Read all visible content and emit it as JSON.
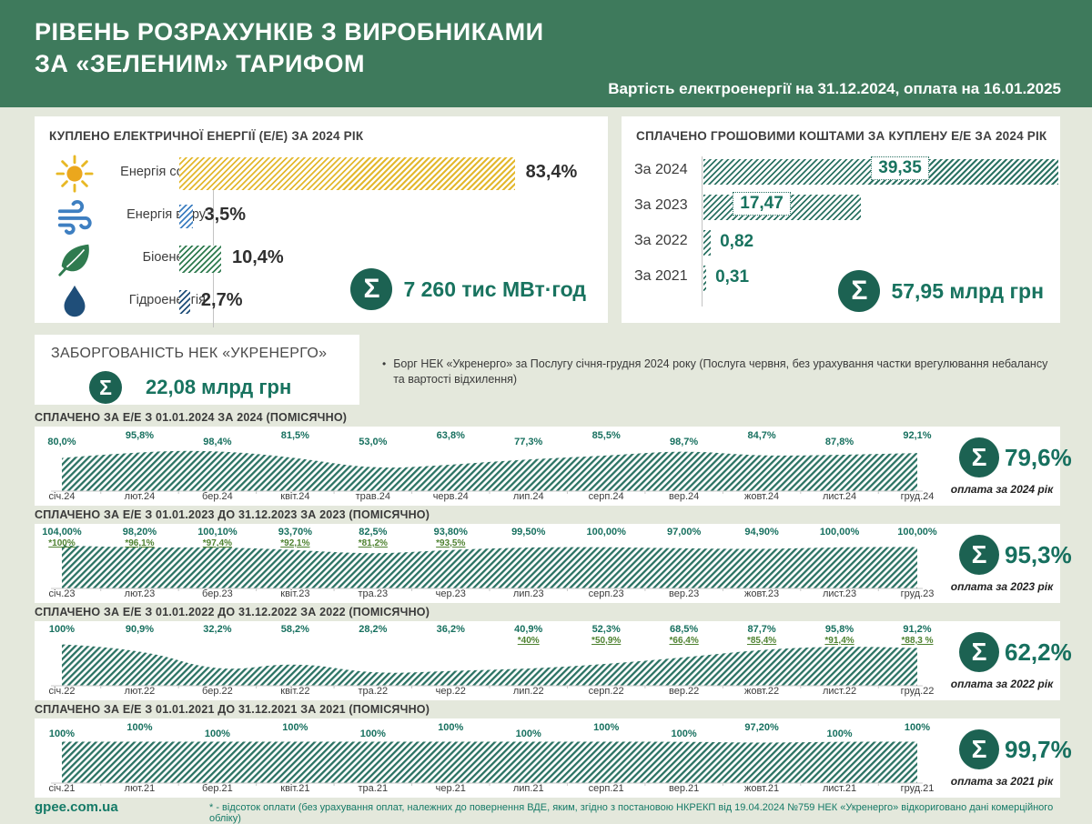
{
  "header": {
    "title_line1": "РІВЕНЬ РОЗРАХУНКІВ З ВИРОБНИКАМИ",
    "title_line2": "ЗА «ЗЕЛЕНИМ» ТАРИФОМ",
    "subtitle": "Вартість електроенергії на 31.12.2024, оплата на 16.01.2025"
  },
  "purchased": {
    "title": "КУПЛЕНО ЕЛЕКТРИЧНОЇ ЕНЕРГІЇ (Е/Е) ЗА 2024 РІК",
    "rows": [
      {
        "icon": "sun-icon",
        "label": "Енергія сонця",
        "value": "83,4%",
        "pct": 83.4,
        "color": "#E3B82E"
      },
      {
        "icon": "wind-icon",
        "label": "Енергія вітру",
        "value": "3,5%",
        "pct": 3.5,
        "color": "#3E7FC1"
      },
      {
        "icon": "leaf-icon",
        "label": "Біоенергія",
        "value": "10,4%",
        "pct": 10.4,
        "color": "#2F7B4F"
      },
      {
        "icon": "drop-icon",
        "label": "Гідроенергія",
        "value": "2,7%",
        "pct": 2.7,
        "color": "#1F4E79"
      }
    ],
    "total_label": "7 260 тис МВт·год"
  },
  "paid": {
    "title": "СПЛАЧЕНО ГРОШОВИМИ КОШТАМИ ЗА КУПЛЕНУ Е/Е ЗА 2024 РІК",
    "rows": [
      {
        "label": "За 2024",
        "value": "39,35",
        "amount": 39.35,
        "box": "inside",
        "box_left": 0.55
      },
      {
        "label": "За 2023",
        "value": "17,47",
        "amount": 17.47,
        "box": "inside",
        "box_left": 0.36
      },
      {
        "label": "За 2022",
        "value": "0,82",
        "amount": 0.82,
        "box": "outside"
      },
      {
        "label": "За 2021",
        "value": "0,31",
        "amount": 0.31,
        "box": "outside"
      }
    ],
    "total_label": "57,95 млрд грн"
  },
  "debt": {
    "title": "ЗАБОРГОВАНІСТЬ НЕК «УКРЕНЕРГО»",
    "value": "22,08 млрд грн",
    "note": "Борг НЕК «Укренерго» за Послугу січня-грудня 2024 року (Послуга червня, без урахування частки врегулювання небалансу та вартості відхилення)"
  },
  "chart_data": [
    {
      "type": "area",
      "title": "СПЛАЧЕНО ЗА Е/Е З 01.01.2024 ЗА 2024  (ПОМІСЯЧНО)",
      "categories": [
        "січ.24",
        "лют.24",
        "бер.24",
        "квіт.24",
        "трав.24",
        "черв.24",
        "лип.24",
        "серп.24",
        "вер.24",
        "жовт.24",
        "лист.24",
        "груд.24"
      ],
      "values": [
        80.0,
        95.8,
        98.4,
        81.5,
        53.0,
        63.8,
        77.3,
        85.5,
        98.7,
        84.7,
        87.8,
        92.1
      ],
      "value_labels": [
        "80,0%",
        "95,8%",
        "98,4%",
        "81,5%",
        "53,0%",
        "63,8%",
        "77,3%",
        "85,5%",
        "98,7%",
        "84,7%",
        "87,8%",
        "92,1%"
      ],
      "star_labels": [
        "",
        "",
        "",
        "",
        "",
        "",
        "",
        "",
        "",
        "",
        "",
        ""
      ],
      "ylim": [
        0,
        110
      ],
      "total": "79,6%",
      "total_caption": "оплата за 2024 рік"
    },
    {
      "type": "area",
      "title": "СПЛАЧЕНО ЗА Е/Е З 01.01.2023 ДО 31.12.2023 ЗА 2023  (ПОМІСЯЧНО)",
      "categories": [
        "січ.23",
        "лют.23",
        "бер.23",
        "квіт.23",
        "тра.23",
        "чер.23",
        "лип.23",
        "серп.23",
        "вер.23",
        "жовт.23",
        "лист.23",
        "груд.23"
      ],
      "values": [
        104.0,
        98.2,
        100.1,
        93.7,
        82.5,
        93.8,
        99.5,
        100.0,
        97.0,
        94.9,
        100.0,
        100.0
      ],
      "value_labels": [
        "104,00%",
        "98,20%",
        "100,10%",
        "93,70%",
        "82,5%",
        "93,80%",
        "99,50%",
        "100,00%",
        "97,00%",
        "94,90%",
        "100,00%",
        "100,00%"
      ],
      "star_labels": [
        "*100%",
        "*96,1%",
        "*97,4%",
        "*92,1%",
        "*81,2%",
        "*93,5%",
        "",
        "",
        "",
        "",
        "",
        ""
      ],
      "ylim": [
        0,
        110
      ],
      "total": "95,3%",
      "total_caption": "оплата за 2023 рік"
    },
    {
      "type": "area",
      "title": "СПЛАЧЕНО ЗА Е/Е З 01.01.2022 ДО 31.12.2022 ЗА 2022 (ПОМІСЯЧНО)",
      "categories": [
        "січ.22",
        "лют.22",
        "бер.22",
        "квіт.22",
        "тра.22",
        "чер.22",
        "лип.22",
        "серп.22",
        "вер.22",
        "жовт.22",
        "лист.22",
        "груд.22"
      ],
      "values": [
        100,
        90.9,
        32.2,
        58.2,
        28.2,
        36.2,
        40.9,
        52.3,
        68.5,
        87.7,
        95.8,
        91.2
      ],
      "value_labels": [
        "100%",
        "90,9%",
        "32,2%",
        "58,2%",
        "28,2%",
        "36,2%",
        "40,9%",
        "52,3%",
        "68,5%",
        "87,7%",
        "95,8%",
        "91,2%"
      ],
      "star_labels": [
        "",
        "",
        "",
        "",
        "",
        "",
        "*40%",
        "*50,9%",
        "*66,4%",
        "*85,4%",
        "*91,4%",
        "*88,3 %"
      ],
      "ylim": [
        0,
        110
      ],
      "total": "62,2%",
      "total_caption": "оплата за 2022 рік"
    },
    {
      "type": "area",
      "title": "СПЛАЧЕНО ЗА Е/Е З 01.01.2021 ДО 31.12.2021 ЗА 2021 (ПОМІСЯЧНО)",
      "categories": [
        "січ.21",
        "лют.21",
        "бер.21",
        "квіт.21",
        "тра.21",
        "чер.21",
        "лип.21",
        "серп.21",
        "вер.21",
        "жовт.21",
        "лист.21",
        "груд.21"
      ],
      "values": [
        100,
        100,
        100,
        100,
        100,
        100,
        100,
        100,
        100,
        97.2,
        100,
        100
      ],
      "value_labels": [
        "100%",
        "100%",
        "100%",
        "100%",
        "100%",
        "100%",
        "100%",
        "100%",
        "100%",
        "97,20%",
        "100%",
        "100%"
      ],
      "star_labels": [
        "",
        "",
        "",
        "",
        "",
        "",
        "",
        "",
        "",
        "",
        "",
        ""
      ],
      "ylim": [
        0,
        110
      ],
      "total": "99,7%",
      "total_caption": "оплата за 2021 рік"
    }
  ],
  "footer": {
    "site": "gpee.com.ua",
    "note": "* - відсоток оплати (без урахування оплат, належних до повернення ВДЕ, яким, згідно з постановою НКРЕКП від 19.04.2024  №759 НЕК «Укренерго» відкориговано дані комерційного обліку)"
  },
  "colors": {
    "header_bg": "#3e7a5c",
    "page_bg": "#e4e8dc",
    "teal_hatch": "#2b7263",
    "teal_text": "#18735f",
    "sigma_bg": "#1c6252",
    "star_green": "#4e8230"
  }
}
